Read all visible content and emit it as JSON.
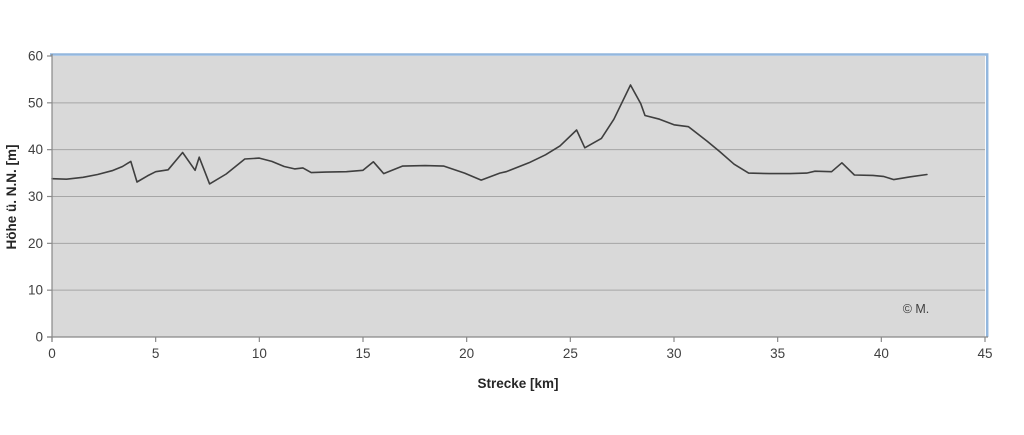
{
  "chart_data": {
    "type": "line",
    "title": "",
    "xlabel": "Strecke [km]",
    "ylabel": "Höhe ü. N.N. [m]",
    "watermark": "© M.",
    "xlim": [
      0,
      45
    ],
    "ylim": [
      0,
      60
    ],
    "x_ticks": [
      0,
      5,
      10,
      15,
      20,
      25,
      30,
      35,
      40,
      45
    ],
    "y_ticks": [
      0,
      10,
      20,
      30,
      40,
      50,
      60
    ],
    "grid": "horizontal-only",
    "legend": "none",
    "colors": {
      "plot_bg": "#d9d9d9",
      "gridline": "#a6a6a6",
      "axis": "#898989",
      "line": "#3f3f3f",
      "accent_border": "#93b7de",
      "text": "#404040"
    },
    "series": [
      {
        "x": [
          0,
          0.7,
          1.5,
          2.2,
          2.9,
          3.4,
          3.8,
          4.1,
          4.6,
          5.0,
          5.6,
          6.3,
          6.9,
          7.1,
          7.6,
          8.4,
          9.3,
          10.0,
          10.6,
          11.2,
          11.7,
          12.1,
          12.5,
          13.2,
          14.2,
          15.0,
          15.5,
          16.0,
          16.9,
          18.0,
          18.9,
          19.9,
          20.7,
          21.6,
          21.9,
          23.0,
          23.8,
          24.5,
          25.3,
          25.7,
          26.5,
          27.1,
          27.9,
          28.4,
          28.6,
          29.3,
          30.0,
          30.7,
          31.6,
          32.2,
          32.9,
          33.6,
          34.6,
          35.6,
          36.4,
          36.8,
          37.6,
          38.1,
          38.7,
          39.6,
          40.1,
          40.6,
          41.4,
          42.2
        ],
        "y": [
          33.8,
          33.7,
          34.1,
          34.7,
          35.5,
          36.4,
          37.5,
          33.1,
          34.4,
          35.3,
          35.7,
          39.4,
          35.6,
          38.4,
          32.7,
          34.8,
          38.0,
          38.2,
          37.5,
          36.4,
          35.9,
          36.1,
          35.1,
          35.2,
          35.3,
          35.6,
          37.4,
          34.9,
          36.5,
          36.6,
          36.5,
          35.0,
          33.5,
          35.0,
          35.3,
          37.2,
          38.9,
          40.8,
          44.2,
          40.4,
          42.4,
          46.5,
          53.8,
          49.8,
          47.3,
          46.5,
          45.3,
          44.9,
          41.8,
          39.6,
          36.9,
          35.0,
          34.9,
          34.9,
          35.0,
          35.4,
          35.3,
          37.2,
          34.6,
          34.5,
          34.3,
          33.6,
          34.2,
          34.7
        ]
      }
    ]
  }
}
